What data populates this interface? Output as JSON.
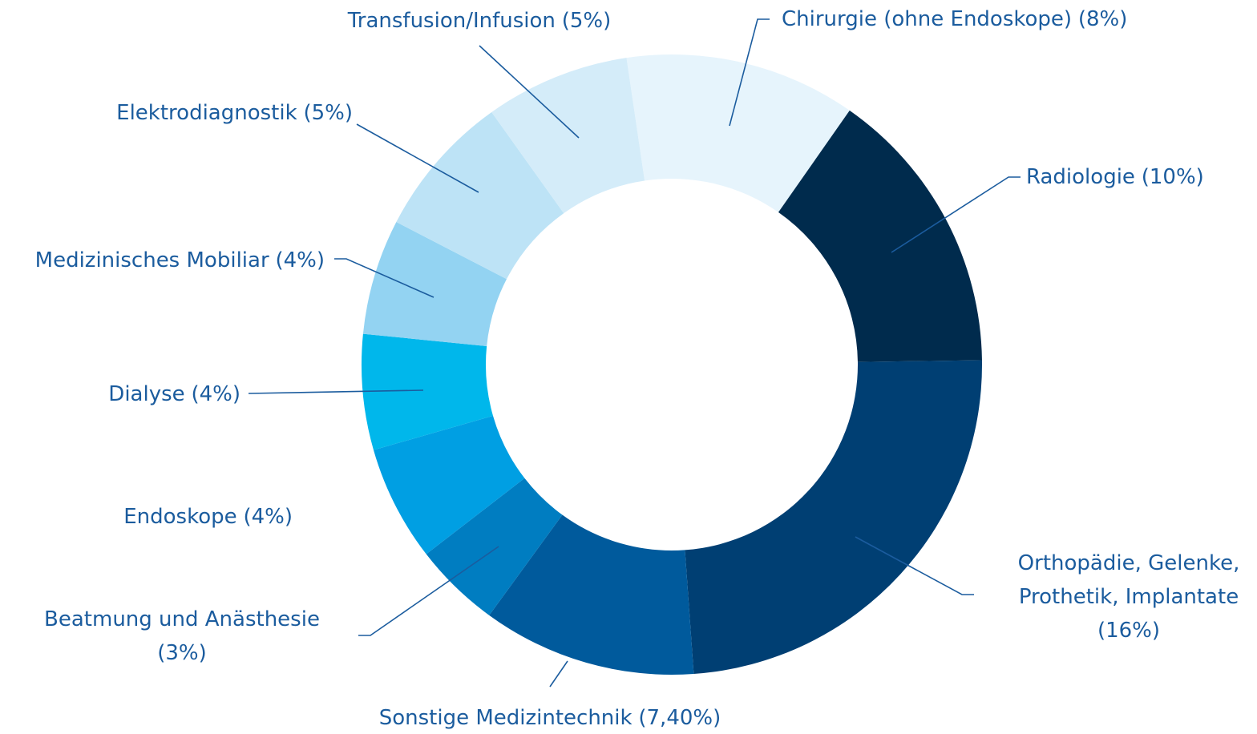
{
  "chart_data": {
    "type": "donut",
    "categories": [
      [
        "Chirurgie (ohne Endoskope)"
      ],
      [
        "Radiologie"
      ],
      [
        "Orthopädie, Gelenke,",
        "Prothetik, Implantate"
      ],
      [
        "Sonstige Medizintechnik"
      ],
      [
        "Beatmung und Anästhesie"
      ],
      [
        "Endoskope"
      ],
      [
        "Dialyse"
      ],
      [
        "Medizinisches Mobiliar"
      ],
      [
        "Elektrodiagnostik"
      ],
      [
        "Transfusion/Infusion"
      ]
    ],
    "values": [
      8,
      10,
      16,
      7.4,
      3,
      4,
      4,
      4,
      5,
      5
    ],
    "value_labels": [
      "(8%)",
      "(10%)",
      "(16%)",
      "(7,40%)",
      "(3%)",
      "(4%)",
      "(4%)",
      "(4%)",
      "(5%)",
      "(5%)"
    ],
    "colors": [
      "#e6f4fc",
      "#002b4d",
      "#003f73",
      "#005a9c",
      "#007dc1",
      "#009fe3",
      "#00b7eb",
      "#93d3f2",
      "#bde3f6",
      "#d4ecf9"
    ]
  }
}
